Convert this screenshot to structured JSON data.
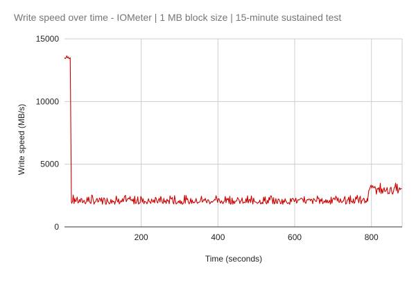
{
  "chart_data": {
    "type": "line",
    "title": "Write speed over time - IOMeter | 1 MB block size | 15-minute sustained test",
    "xlabel": "Time (seconds)",
    "ylabel": "Write speed (MB/s)",
    "xlim": [
      0,
      880
    ],
    "ylim": [
      0,
      15000
    ],
    "x_ticks": [
      200,
      400,
      600,
      800
    ],
    "y_ticks": [
      0,
      5000,
      10000,
      15000
    ],
    "grid": true,
    "legend": "none",
    "colors": {
      "line": "#cc0000",
      "grid": "#cccccc",
      "axis": "#333333"
    },
    "series": [
      {
        "segments": [
          {
            "x_start": 0,
            "x_end": 15,
            "baseline": 13500,
            "fluctuation": 200
          },
          {
            "x_start": 19,
            "x_end": 790,
            "baseline": 2050,
            "fluctuation": 500
          },
          {
            "x_start": 795,
            "x_end": 880,
            "baseline": 2900,
            "fluctuation": 600
          }
        ],
        "transitions": [
          {
            "x": 15,
            "from": 13500,
            "to": 2000
          },
          {
            "x": 790,
            "from": 2050,
            "to": 2900
          }
        ]
      }
    ]
  }
}
